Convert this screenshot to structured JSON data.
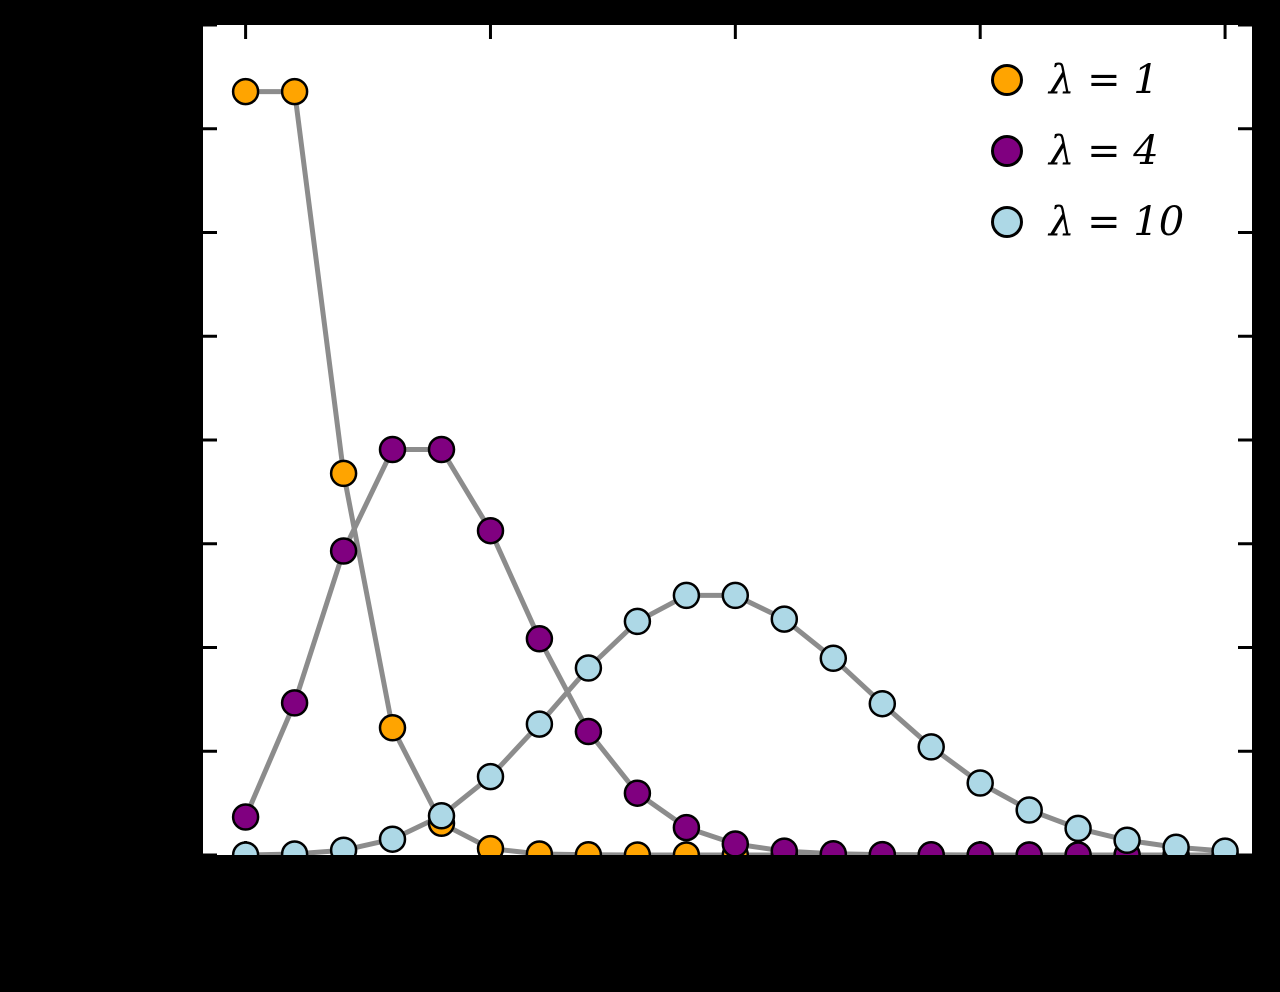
{
  "page": {
    "background_color": "#000000"
  },
  "plot": {
    "background_color": "#ffffff",
    "frame_color": "#000000",
    "line_color": "#8c8c8c",
    "marker_edge_color": "#000000",
    "tick_color": "#000000"
  },
  "legend": {
    "position": "upper right",
    "frame": false
  },
  "chart_data": {
    "type": "line",
    "description": "Poisson probability mass functions for three rate parameters, markers at integer k connected by gray lines",
    "x": [
      0,
      1,
      2,
      3,
      4,
      5,
      6,
      7,
      8,
      9,
      10,
      11,
      12,
      13,
      14,
      15,
      16,
      17,
      18,
      19,
      20
    ],
    "series": [
      {
        "name": "λ = 1",
        "color": "#FFA400",
        "values": [
          0.3679,
          0.3679,
          0.1839,
          0.0613,
          0.0153,
          0.0031,
          0.0005,
          0.0001,
          0.0,
          0.0,
          0.0,
          0.0,
          0.0,
          0.0,
          0.0,
          0.0,
          0.0,
          0.0,
          0.0,
          0.0,
          0.0
        ]
      },
      {
        "name": "λ = 4",
        "color": "#800080",
        "values": [
          0.0183,
          0.0733,
          0.1465,
          0.1954,
          0.1954,
          0.1563,
          0.1042,
          0.0595,
          0.0298,
          0.0132,
          0.0053,
          0.0019,
          0.0006,
          0.0002,
          0.0001,
          0.0,
          0.0,
          0.0,
          0.0,
          0.0,
          0.0
        ]
      },
      {
        "name": "λ = 10",
        "color": "#ADD8E6",
        "values": [
          0.0,
          0.0005,
          0.0023,
          0.0076,
          0.0189,
          0.0378,
          0.0631,
          0.0901,
          0.1126,
          0.1251,
          0.1251,
          0.1137,
          0.0948,
          0.0729,
          0.0521,
          0.0347,
          0.0217,
          0.0128,
          0.0071,
          0.0037,
          0.0019
        ]
      }
    ],
    "xlim": [
      -0.87,
      20.55
    ],
    "ylim": [
      0,
      0.4
    ],
    "x_ticks": [
      0,
      5,
      10,
      15,
      20
    ],
    "y_ticks": [
      0,
      0.05,
      0.1,
      0.15,
      0.2,
      0.25,
      0.3,
      0.35,
      0.4
    ],
    "tick_labels_visible": false,
    "grid": false,
    "legend_position": "upper right",
    "line_width": 5,
    "marker_radius": 12.5
  }
}
